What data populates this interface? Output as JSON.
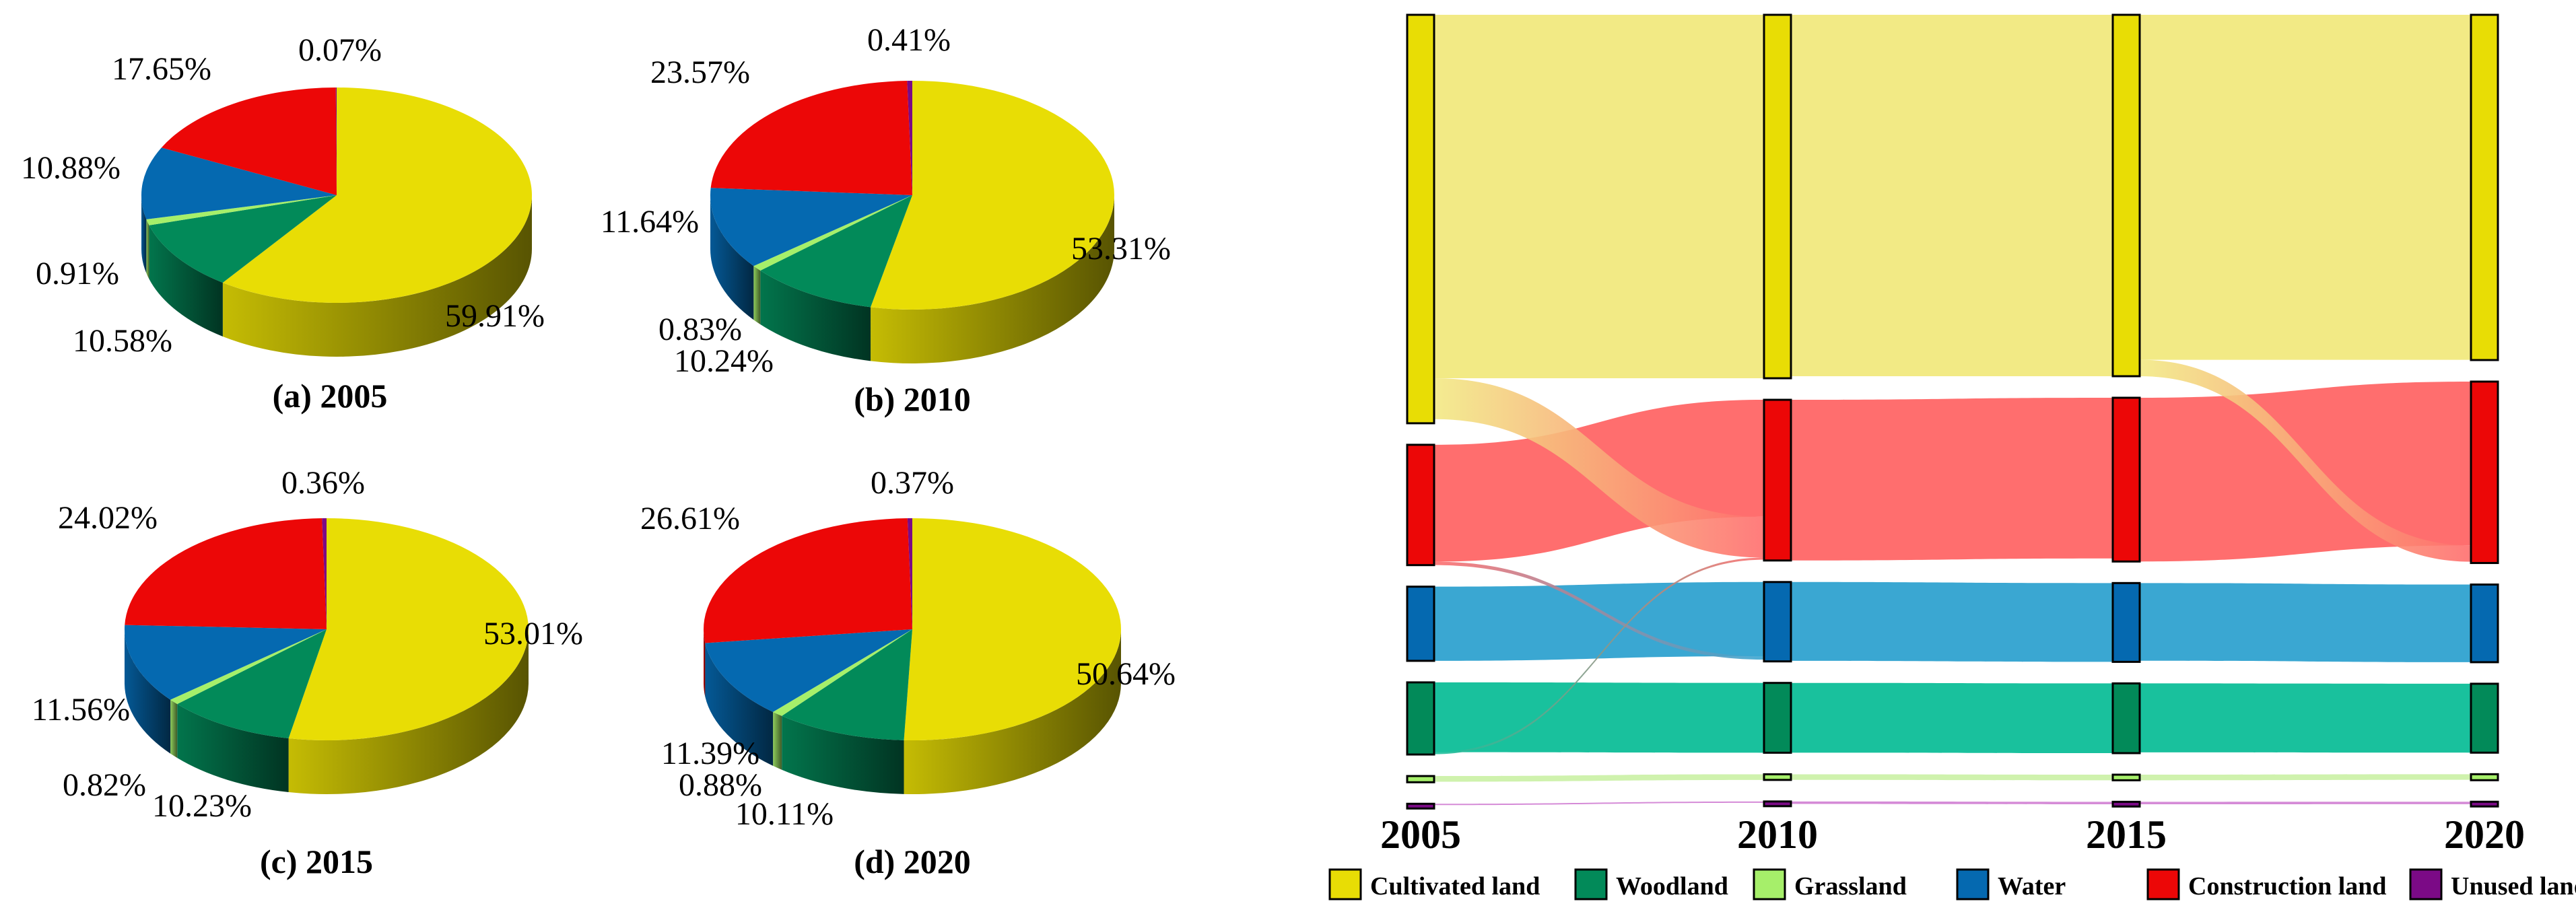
{
  "colors": {
    "Cultivated land": "#e8dd05",
    "Woodland": "#028a59",
    "Grassland": "#a6ef6a",
    "Water": "#0569b0",
    "Construction land": "#ec0707",
    "Unused land": "#7b0a86"
  },
  "flow_colors": {
    "Cultivated land": "#f2ea85",
    "Woodland": "#19c19d",
    "Grassland": "#cff2ad",
    "Water": "#3aa7d2",
    "Construction land": "#ff6e6e",
    "Unused land": "#d58bd7"
  },
  "chart_data": [
    {
      "type": "pie",
      "style": "3d",
      "title": "(a) 2005",
      "categories": [
        "Cultivated land",
        "Woodland",
        "Grassland",
        "Water",
        "Construction land",
        "Unused land"
      ],
      "values": [
        59.91,
        10.58,
        0.91,
        10.88,
        17.65,
        0.07
      ],
      "labels": [
        "59.91%",
        "10.58%",
        "0.91%",
        "10.88%",
        "17.65%",
        "0.07%"
      ]
    },
    {
      "type": "pie",
      "style": "3d",
      "title": "(b) 2010",
      "categories": [
        "Cultivated land",
        "Woodland",
        "Grassland",
        "Water",
        "Construction land",
        "Unused land"
      ],
      "values": [
        53.31,
        10.24,
        0.83,
        11.64,
        23.57,
        0.41
      ],
      "labels": [
        "53.31%",
        "10.24%",
        "0.83%",
        "11.64%",
        "23.57%",
        "0.41%"
      ]
    },
    {
      "type": "pie",
      "style": "3d",
      "title": "(c) 2015",
      "categories": [
        "Cultivated land",
        "Woodland",
        "Grassland",
        "Water",
        "Construction land",
        "Unused land"
      ],
      "values": [
        53.01,
        10.23,
        0.82,
        11.56,
        24.02,
        0.36
      ],
      "labels": [
        "53.01%",
        "10.23%",
        "0.82%",
        "11.56%",
        "24.02%",
        "0.36%"
      ]
    },
    {
      "type": "pie",
      "style": "3d",
      "title": "(d) 2020",
      "categories": [
        "Cultivated land",
        "Woodland",
        "Grassland",
        "Water",
        "Construction land",
        "Unused land"
      ],
      "values": [
        50.64,
        10.11,
        0.88,
        11.39,
        26.61,
        0.37
      ],
      "labels": [
        "50.64%",
        "10.11%",
        "0.88%",
        "11.39%",
        "26.61%",
        "0.37%"
      ]
    },
    {
      "type": "sankey",
      "title": "",
      "years": [
        "2005",
        "2010",
        "2015",
        "2020"
      ],
      "categories": [
        "Cultivated land",
        "Woodland",
        "Grassland",
        "Water",
        "Construction land",
        "Unused land"
      ],
      "node_order": [
        "Cultivated land",
        "Construction land",
        "Water",
        "Woodland",
        "Grassland",
        "Unused land"
      ],
      "shares_percent": {
        "2005": [
          59.91,
          10.58,
          0.91,
          10.88,
          17.65,
          0.07
        ],
        "2010": [
          53.31,
          10.24,
          0.83,
          11.64,
          23.57,
          0.41
        ],
        "2015": [
          53.01,
          10.23,
          0.82,
          11.56,
          24.02,
          0.36
        ],
        "2020": [
          50.64,
          10.11,
          0.88,
          11.39,
          26.61,
          0.37
        ]
      },
      "main_transitions_percent": [
        {
          "from_year": "2005",
          "from": "Cultivated land",
          "to": "Construction land",
          "value": 6.0
        },
        {
          "from_year": "2005",
          "from": "Construction land",
          "to": "Water",
          "value": 0.5
        },
        {
          "from_year": "2005",
          "from": "Woodland",
          "to": "Construction land",
          "value": 0.3
        },
        {
          "from_year": "2015",
          "from": "Cultivated land",
          "to": "Construction land",
          "value": 2.4
        }
      ],
      "legend": [
        "Cultivated land",
        "Woodland",
        "Grassland",
        "Water",
        "Construction land",
        "Unused land"
      ],
      "legend_position": "bottom"
    }
  ]
}
